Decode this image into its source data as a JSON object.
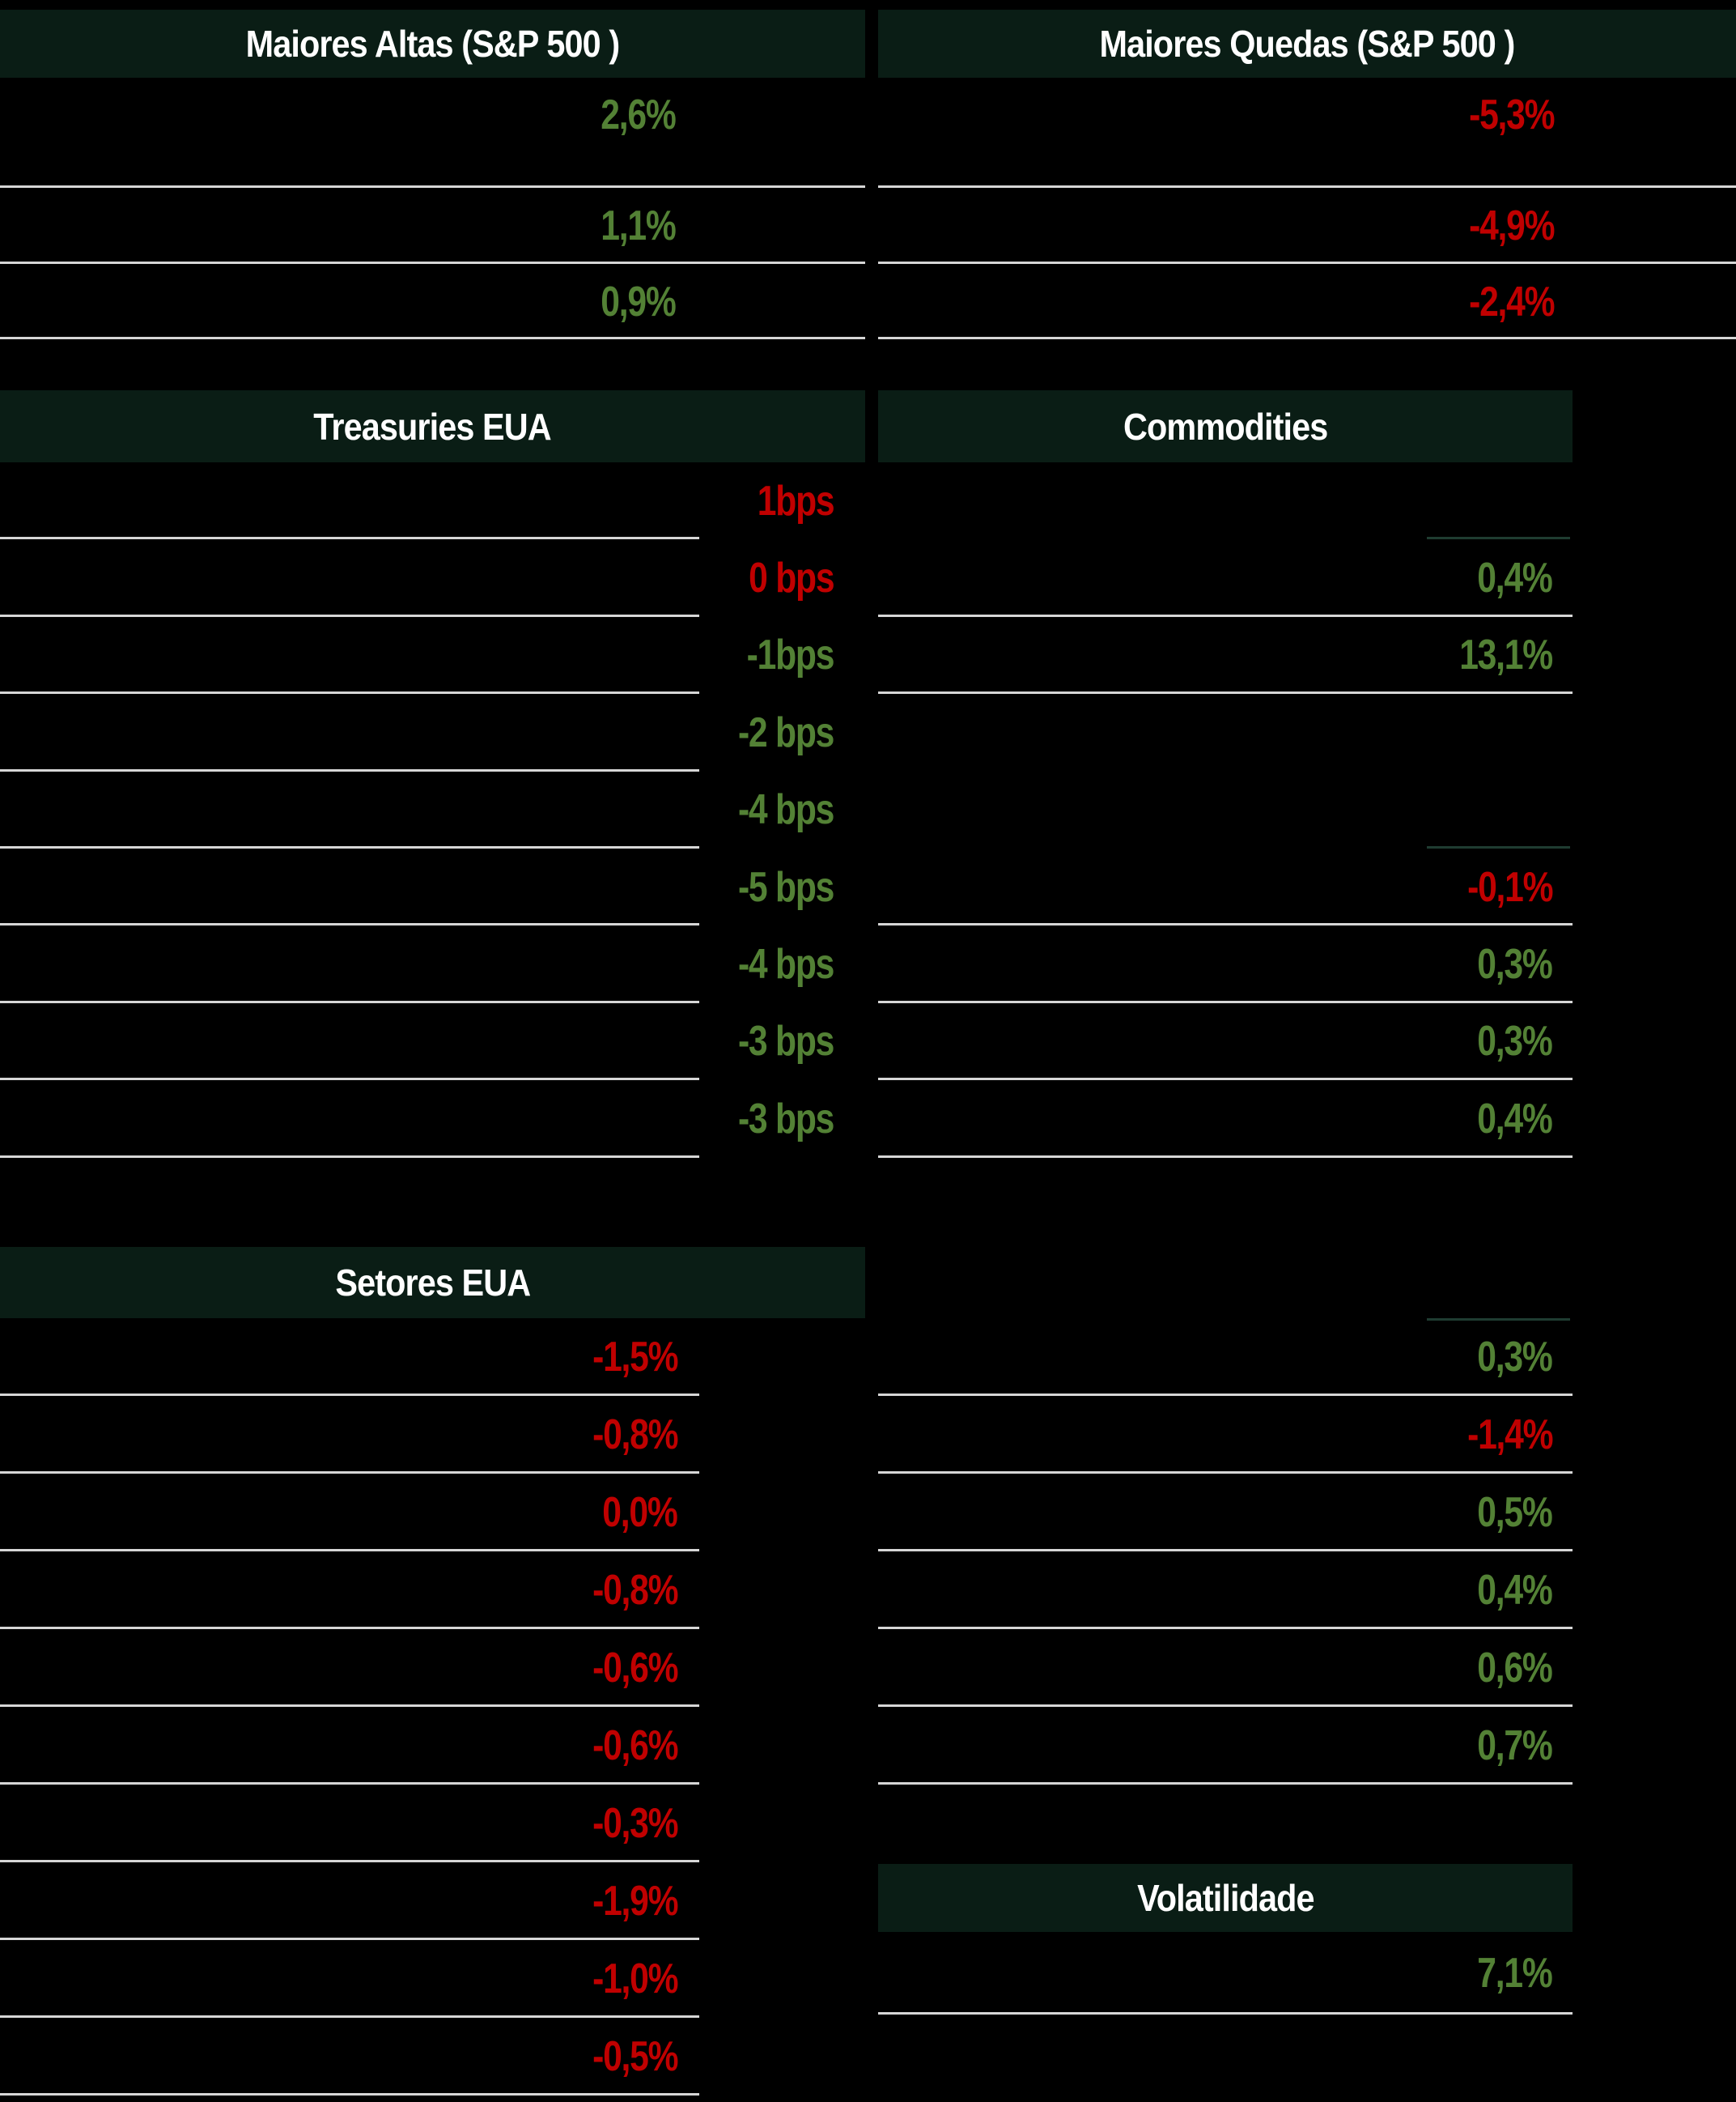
{
  "colors": {
    "green": "#538135",
    "red": "#c00000",
    "header_bg": "#0a1d15",
    "line": "#d6d6d6",
    "short_line": "#1f3c31",
    "bg": "#000000"
  },
  "tables": {
    "maiores_altas": {
      "title": "Maiores Altas (S&P 500 )",
      "rows": [
        {
          "value": "2,6%",
          "color": "green",
          "line": "full"
        },
        {
          "value": "1,1%",
          "color": "green",
          "line": "full"
        },
        {
          "value": "0,9%",
          "color": "green",
          "line": "full"
        }
      ]
    },
    "maiores_quedas": {
      "title": "Maiores Quedas (S&P 500 )",
      "rows": [
        {
          "value": "-5,3%",
          "color": "red",
          "line": "full"
        },
        {
          "value": "-4,9%",
          "color": "red",
          "line": "full"
        },
        {
          "value": "-2,4%",
          "color": "red",
          "line": "full"
        }
      ]
    },
    "treasuries_eua": {
      "title": "Treasuries EUA",
      "rows": [
        {
          "value": "1bps",
          "color": "red",
          "line": "label"
        },
        {
          "value": "0 bps",
          "color": "red",
          "line": "label"
        },
        {
          "value": "-1bps",
          "color": "green",
          "line": "label"
        },
        {
          "value": "-2 bps",
          "color": "green",
          "line": "label"
        },
        {
          "value": "-4 bps",
          "color": "green",
          "line": "label"
        },
        {
          "value": "-5 bps",
          "color": "green",
          "line": "label"
        },
        {
          "value": "-4 bps",
          "color": "green",
          "line": "label"
        },
        {
          "value": "-3 bps",
          "color": "green",
          "line": "label"
        },
        {
          "value": "-3 bps",
          "color": "green",
          "line": "label"
        }
      ]
    },
    "commodities": {
      "title": "Commodities",
      "rows": [
        {
          "value": "",
          "color": "",
          "line": "short"
        },
        {
          "value": "0,4%",
          "color": "green",
          "line": "full"
        },
        {
          "value": "13,1%",
          "color": "green",
          "line": "full"
        },
        {
          "value": "",
          "color": "",
          "line": "none"
        },
        {
          "value": "",
          "color": "",
          "line": "short"
        },
        {
          "value": "-0,1%",
          "color": "red",
          "line": "full"
        },
        {
          "value": "0,3%",
          "color": "green",
          "line": "full"
        },
        {
          "value": "0,3%",
          "color": "green",
          "line": "full"
        },
        {
          "value": "0,4%",
          "color": "green",
          "line": "full"
        }
      ]
    },
    "setores_eua": {
      "title": "Setores EUA",
      "rows": [
        {
          "value": "-1,5%",
          "color": "red",
          "line": "label"
        },
        {
          "value": "-0,8%",
          "color": "red",
          "line": "label"
        },
        {
          "value": "0,0%",
          "color": "red",
          "line": "label"
        },
        {
          "value": "-0,8%",
          "color": "red",
          "line": "label"
        },
        {
          "value": "-0,6%",
          "color": "red",
          "line": "label"
        },
        {
          "value": "-0,6%",
          "color": "red",
          "line": "label"
        },
        {
          "value": "-0,3%",
          "color": "red",
          "line": "label"
        },
        {
          "value": "-1,9%",
          "color": "red",
          "line": "label"
        },
        {
          "value": "-1,0%",
          "color": "red",
          "line": "label"
        },
        {
          "value": "-0,5%",
          "color": "red",
          "line": "label"
        }
      ]
    },
    "commodities_continued": {
      "top_line": "short",
      "rows": [
        {
          "value": "0,3%",
          "color": "green",
          "line": "full"
        },
        {
          "value": "-1,4%",
          "color": "red",
          "line": "full"
        },
        {
          "value": "0,5%",
          "color": "green",
          "line": "full"
        },
        {
          "value": "0,4%",
          "color": "green",
          "line": "full"
        },
        {
          "value": "0,6%",
          "color": "green",
          "line": "full"
        },
        {
          "value": "0,7%",
          "color": "green",
          "line": "full"
        }
      ]
    },
    "volatilidade": {
      "title": "Volatilidade",
      "rows": [
        {
          "value": "7,1%",
          "color": "green",
          "line": "full"
        }
      ]
    }
  }
}
